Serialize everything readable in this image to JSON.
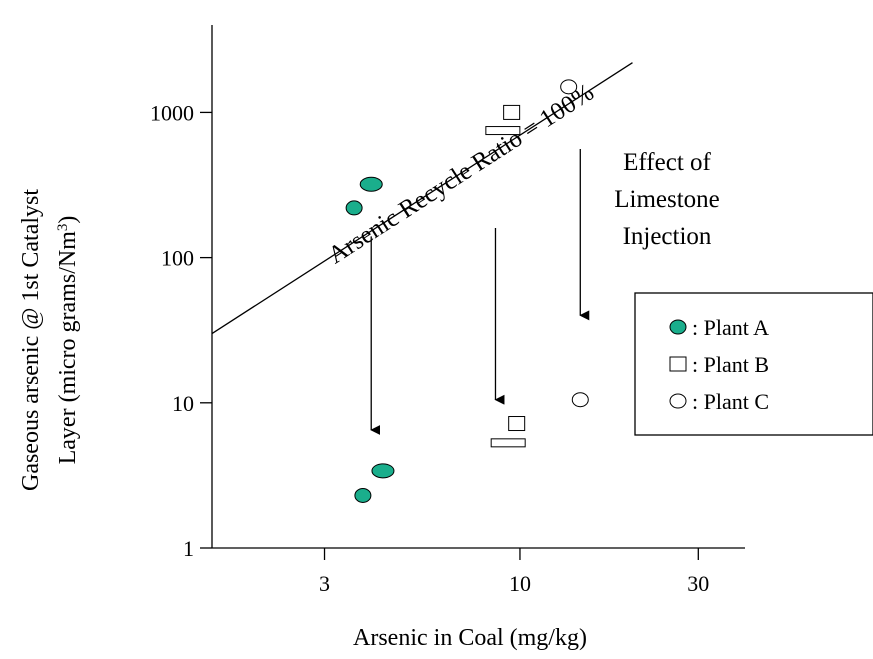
{
  "chart_data": {
    "type": "scatter",
    "xscale": "log",
    "yscale": "log",
    "xlabel": "Arsenic in Coal (mg/kg)",
    "ylabel_line1": "Gaseous arsenic @ 1st Catalyst",
    "ylabel_line2": "Layer (micro grams/Nm",
    "ylabel_sup": "3",
    "ylabel_end": ")",
    "xlim": [
      1.5,
      40
    ],
    "ylim": [
      1,
      4000
    ],
    "xticks": [
      3,
      10,
      30
    ],
    "xtick_labels": [
      "3",
      "10",
      "30"
    ],
    "yticks": [
      1,
      10,
      100,
      1000
    ],
    "ytick_labels": [
      "1",
      "10",
      "100",
      "1000"
    ],
    "grid": false,
    "legend_position": "right",
    "reference_line": {
      "label": "Arsenic Recycle Ratio = 100%",
      "points": [
        [
          1.5,
          30
        ],
        [
          20,
          2200
        ]
      ]
    },
    "annotation": [
      "Effect of",
      "Limestone",
      "Injection"
    ],
    "arrows": [
      {
        "x": 4.0,
        "from": 140,
        "to": 6.5
      },
      {
        "x": 8.6,
        "from": 160,
        "to": 10.5
      },
      {
        "x": 14.5,
        "from": 560,
        "to": 40
      }
    ],
    "series": [
      {
        "name": ": Plant A",
        "marker": "ellipse-filled",
        "color": "#1aae8c",
        "points": [
          [
            3.6,
            220
          ],
          [
            4.0,
            320
          ],
          [
            3.8,
            2.3
          ],
          [
            4.3,
            3.4
          ]
        ]
      },
      {
        "name": ": Plant B",
        "marker": "square-open",
        "color": "#000000",
        "points": [
          [
            9.5,
            1000
          ],
          [
            9.0,
            750
          ],
          [
            9.8,
            7.2
          ],
          [
            9.3,
            5.3
          ]
        ]
      },
      {
        "name": ": Plant C",
        "marker": "circle-open",
        "color": "#000000",
        "points": [
          [
            13.5,
            1500
          ],
          [
            14.5,
            10.5
          ]
        ]
      }
    ]
  }
}
